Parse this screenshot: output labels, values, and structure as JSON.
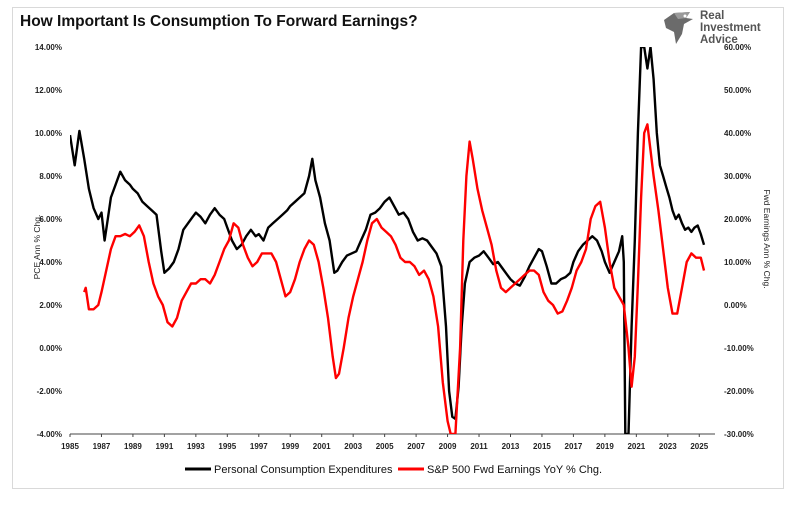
{
  "chart_data": {
    "type": "line",
    "title": "How Important Is Consumption To Forward Earnings?",
    "ylabel": "PCE Ann % Chg.",
    "y2label": "Fwd Earnings Ann % Chg.",
    "xlim": [
      1985,
      2026
    ],
    "ylim": [
      -0.04,
      0.14
    ],
    "y2lim": [
      -0.3,
      0.6
    ],
    "x_ticks": [
      "1985",
      "1987",
      "1989",
      "1991",
      "1993",
      "1995",
      "1997",
      "1999",
      "2001",
      "2003",
      "2005",
      "2007",
      "2009",
      "2011",
      "2013",
      "2015",
      "2017",
      "2019",
      "2021",
      "2023",
      "2025"
    ],
    "y_ticks": [
      "-4.00%",
      "-2.00%",
      "0.00%",
      "2.00%",
      "4.00%",
      "6.00%",
      "8.00%",
      "10.00%",
      "12.00%",
      "14.00%"
    ],
    "y2_ticks": [
      "-30.00%",
      "-20.00%",
      "-10.00%",
      "0.00%",
      "10.00%",
      "20.00%",
      "30.00%",
      "40.00%",
      "50.00%",
      "60.00%"
    ],
    "legend_position": "bottom",
    "grid": false,
    "series": [
      {
        "name": "Personal Consumption Expenditures",
        "color": "#000000",
        "axis": "left",
        "points": [
          [
            1985.0,
            0.099
          ],
          [
            1985.3,
            0.085
          ],
          [
            1985.6,
            0.101
          ],
          [
            1985.9,
            0.088
          ],
          [
            1986.2,
            0.074
          ],
          [
            1986.5,
            0.065
          ],
          [
            1986.8,
            0.06
          ],
          [
            1987.0,
            0.063
          ],
          [
            1987.2,
            0.05
          ],
          [
            1987.4,
            0.06
          ],
          [
            1987.6,
            0.07
          ],
          [
            1987.9,
            0.076
          ],
          [
            1988.2,
            0.082
          ],
          [
            1988.5,
            0.078
          ],
          [
            1988.8,
            0.076
          ],
          [
            1989.0,
            0.074
          ],
          [
            1989.3,
            0.072
          ],
          [
            1989.6,
            0.068
          ],
          [
            1989.9,
            0.066
          ],
          [
            1990.2,
            0.064
          ],
          [
            1990.5,
            0.062
          ],
          [
            1990.8,
            0.045
          ],
          [
            1991.0,
            0.035
          ],
          [
            1991.3,
            0.037
          ],
          [
            1991.6,
            0.04
          ],
          [
            1991.9,
            0.046
          ],
          [
            1992.2,
            0.055
          ],
          [
            1992.5,
            0.058
          ],
          [
            1992.8,
            0.061
          ],
          [
            1993.0,
            0.063
          ],
          [
            1993.3,
            0.061
          ],
          [
            1993.6,
            0.058
          ],
          [
            1993.9,
            0.062
          ],
          [
            1994.2,
            0.065
          ],
          [
            1994.5,
            0.062
          ],
          [
            1994.8,
            0.06
          ],
          [
            1995.0,
            0.056
          ],
          [
            1995.3,
            0.05
          ],
          [
            1995.6,
            0.046
          ],
          [
            1995.9,
            0.048
          ],
          [
            1996.2,
            0.052
          ],
          [
            1996.5,
            0.055
          ],
          [
            1996.8,
            0.052
          ],
          [
            1997.0,
            0.053
          ],
          [
            1997.3,
            0.05
          ],
          [
            1997.6,
            0.056
          ],
          [
            1997.9,
            0.058
          ],
          [
            1998.2,
            0.06
          ],
          [
            1998.5,
            0.062
          ],
          [
            1998.8,
            0.064
          ],
          [
            1999.0,
            0.066
          ],
          [
            1999.3,
            0.068
          ],
          [
            1999.6,
            0.07
          ],
          [
            1999.9,
            0.072
          ],
          [
            2000.2,
            0.08
          ],
          [
            2000.4,
            0.088
          ],
          [
            2000.6,
            0.078
          ],
          [
            2000.9,
            0.07
          ],
          [
            2001.2,
            0.058
          ],
          [
            2001.5,
            0.05
          ],
          [
            2001.8,
            0.035
          ],
          [
            2002.0,
            0.036
          ],
          [
            2002.3,
            0.04
          ],
          [
            2002.6,
            0.043
          ],
          [
            2002.9,
            0.044
          ],
          [
            2003.2,
            0.045
          ],
          [
            2003.5,
            0.05
          ],
          [
            2003.8,
            0.055
          ],
          [
            2004.1,
            0.062
          ],
          [
            2004.4,
            0.063
          ],
          [
            2004.7,
            0.065
          ],
          [
            2005.0,
            0.068
          ],
          [
            2005.3,
            0.07
          ],
          [
            2005.6,
            0.066
          ],
          [
            2005.9,
            0.062
          ],
          [
            2006.2,
            0.063
          ],
          [
            2006.5,
            0.06
          ],
          [
            2006.8,
            0.054
          ],
          [
            2007.1,
            0.05
          ],
          [
            2007.4,
            0.051
          ],
          [
            2007.7,
            0.05
          ],
          [
            2008.0,
            0.047
          ],
          [
            2008.3,
            0.044
          ],
          [
            2008.6,
            0.038
          ],
          [
            2008.9,
            0.01
          ],
          [
            2009.1,
            -0.02
          ],
          [
            2009.3,
            -0.032
          ],
          [
            2009.5,
            -0.033
          ],
          [
            2009.7,
            -0.018
          ],
          [
            2009.9,
            0.01
          ],
          [
            2010.1,
            0.03
          ],
          [
            2010.4,
            0.04
          ],
          [
            2010.7,
            0.042
          ],
          [
            2011.0,
            0.043
          ],
          [
            2011.3,
            0.045
          ],
          [
            2011.6,
            0.042
          ],
          [
            2011.9,
            0.039
          ],
          [
            2012.2,
            0.04
          ],
          [
            2012.5,
            0.037
          ],
          [
            2012.8,
            0.034
          ],
          [
            2013.0,
            0.032
          ],
          [
            2013.3,
            0.03
          ],
          [
            2013.6,
            0.029
          ],
          [
            2013.9,
            0.033
          ],
          [
            2014.2,
            0.038
          ],
          [
            2014.5,
            0.042
          ],
          [
            2014.8,
            0.046
          ],
          [
            2015.0,
            0.045
          ],
          [
            2015.3,
            0.038
          ],
          [
            2015.6,
            0.03
          ],
          [
            2015.9,
            0.03
          ],
          [
            2016.2,
            0.032
          ],
          [
            2016.5,
            0.033
          ],
          [
            2016.8,
            0.035
          ],
          [
            2017.0,
            0.04
          ],
          [
            2017.3,
            0.045
          ],
          [
            2017.6,
            0.048
          ],
          [
            2017.9,
            0.05
          ],
          [
            2018.2,
            0.052
          ],
          [
            2018.5,
            0.05
          ],
          [
            2018.8,
            0.045
          ],
          [
            2019.0,
            0.04
          ],
          [
            2019.3,
            0.035
          ],
          [
            2019.6,
            0.04
          ],
          [
            2019.9,
            0.045
          ],
          [
            2020.1,
            0.052
          ],
          [
            2020.2,
            0.04
          ],
          [
            2020.3,
            -0.04
          ],
          [
            2020.5,
            -0.04
          ],
          [
            2020.7,
            0.01
          ],
          [
            2020.9,
            0.05
          ],
          [
            2021.1,
            0.1
          ],
          [
            2021.3,
            0.14
          ],
          [
            2021.5,
            0.14
          ],
          [
            2021.7,
            0.13
          ],
          [
            2021.9,
            0.14
          ],
          [
            2022.1,
            0.125
          ],
          [
            2022.3,
            0.1
          ],
          [
            2022.5,
            0.085
          ],
          [
            2022.7,
            0.08
          ],
          [
            2022.9,
            0.075
          ],
          [
            2023.1,
            0.07
          ],
          [
            2023.3,
            0.064
          ],
          [
            2023.5,
            0.06
          ],
          [
            2023.7,
            0.062
          ],
          [
            2023.9,
            0.058
          ],
          [
            2024.1,
            0.055
          ],
          [
            2024.3,
            0.056
          ],
          [
            2024.5,
            0.054
          ],
          [
            2024.7,
            0.056
          ],
          [
            2024.9,
            0.057
          ],
          [
            2025.1,
            0.053
          ],
          [
            2025.3,
            0.048
          ]
        ]
      },
      {
        "name": "S&P 500 Fwd Earnings YoY % Chg.",
        "color": "#ff0000",
        "axis": "right",
        "points": [
          [
            1985.9,
            0.03
          ],
          [
            1986.0,
            0.04
          ],
          [
            1986.2,
            -0.01
          ],
          [
            1986.5,
            -0.01
          ],
          [
            1986.8,
            0.0
          ],
          [
            1987.0,
            0.03
          ],
          [
            1987.3,
            0.08
          ],
          [
            1987.6,
            0.13
          ],
          [
            1987.9,
            0.16
          ],
          [
            1988.2,
            0.16
          ],
          [
            1988.5,
            0.165
          ],
          [
            1988.8,
            0.16
          ],
          [
            1989.1,
            0.17
          ],
          [
            1989.4,
            0.185
          ],
          [
            1989.7,
            0.16
          ],
          [
            1990.0,
            0.1
          ],
          [
            1990.3,
            0.05
          ],
          [
            1990.6,
            0.02
          ],
          [
            1990.9,
            0.0
          ],
          [
            1991.2,
            -0.04
          ],
          [
            1991.5,
            -0.05
          ],
          [
            1991.8,
            -0.03
          ],
          [
            1992.1,
            0.01
          ],
          [
            1992.4,
            0.03
          ],
          [
            1992.7,
            0.05
          ],
          [
            1993.0,
            0.05
          ],
          [
            1993.3,
            0.06
          ],
          [
            1993.6,
            0.06
          ],
          [
            1993.9,
            0.05
          ],
          [
            1994.2,
            0.07
          ],
          [
            1994.5,
            0.1
          ],
          [
            1994.8,
            0.13
          ],
          [
            1995.1,
            0.15
          ],
          [
            1995.4,
            0.19
          ],
          [
            1995.7,
            0.18
          ],
          [
            1996.0,
            0.14
          ],
          [
            1996.3,
            0.11
          ],
          [
            1996.6,
            0.09
          ],
          [
            1996.9,
            0.1
          ],
          [
            1997.2,
            0.12
          ],
          [
            1997.5,
            0.12
          ],
          [
            1997.8,
            0.12
          ],
          [
            1998.1,
            0.1
          ],
          [
            1998.4,
            0.06
          ],
          [
            1998.7,
            0.02
          ],
          [
            1999.0,
            0.03
          ],
          [
            1999.3,
            0.06
          ],
          [
            1999.6,
            0.1
          ],
          [
            1999.9,
            0.13
          ],
          [
            2000.2,
            0.15
          ],
          [
            2000.5,
            0.14
          ],
          [
            2000.8,
            0.1
          ],
          [
            2001.1,
            0.04
          ],
          [
            2001.4,
            -0.03
          ],
          [
            2001.7,
            -0.12
          ],
          [
            2001.9,
            -0.17
          ],
          [
            2002.1,
            -0.16
          ],
          [
            2002.4,
            -0.1
          ],
          [
            2002.7,
            -0.03
          ],
          [
            2003.0,
            0.02
          ],
          [
            2003.3,
            0.06
          ],
          [
            2003.6,
            0.1
          ],
          [
            2003.9,
            0.15
          ],
          [
            2004.2,
            0.19
          ],
          [
            2004.5,
            0.2
          ],
          [
            2004.8,
            0.18
          ],
          [
            2005.1,
            0.17
          ],
          [
            2005.4,
            0.16
          ],
          [
            2005.7,
            0.14
          ],
          [
            2006.0,
            0.11
          ],
          [
            2006.3,
            0.1
          ],
          [
            2006.6,
            0.1
          ],
          [
            2006.9,
            0.09
          ],
          [
            2007.2,
            0.07
          ],
          [
            2007.5,
            0.08
          ],
          [
            2007.8,
            0.06
          ],
          [
            2008.1,
            0.02
          ],
          [
            2008.4,
            -0.05
          ],
          [
            2008.7,
            -0.18
          ],
          [
            2009.0,
            -0.27
          ],
          [
            2009.2,
            -0.3
          ],
          [
            2009.5,
            -0.3
          ],
          [
            2009.8,
            -0.1
          ],
          [
            2010.0,
            0.15
          ],
          [
            2010.2,
            0.3
          ],
          [
            2010.4,
            0.38
          ],
          [
            2010.6,
            0.34
          ],
          [
            2010.9,
            0.27
          ],
          [
            2011.2,
            0.22
          ],
          [
            2011.5,
            0.18
          ],
          [
            2011.8,
            0.14
          ],
          [
            2012.1,
            0.08
          ],
          [
            2012.4,
            0.04
          ],
          [
            2012.7,
            0.03
          ],
          [
            2013.0,
            0.04
          ],
          [
            2013.3,
            0.05
          ],
          [
            2013.6,
            0.06
          ],
          [
            2013.9,
            0.07
          ],
          [
            2014.2,
            0.08
          ],
          [
            2014.5,
            0.08
          ],
          [
            2014.8,
            0.07
          ],
          [
            2015.1,
            0.03
          ],
          [
            2015.4,
            0.01
          ],
          [
            2015.7,
            0.0
          ],
          [
            2016.0,
            -0.02
          ],
          [
            2016.3,
            -0.015
          ],
          [
            2016.6,
            0.01
          ],
          [
            2016.9,
            0.04
          ],
          [
            2017.2,
            0.08
          ],
          [
            2017.5,
            0.1
          ],
          [
            2017.8,
            0.13
          ],
          [
            2018.1,
            0.2
          ],
          [
            2018.4,
            0.23
          ],
          [
            2018.7,
            0.24
          ],
          [
            2019.0,
            0.18
          ],
          [
            2019.3,
            0.1
          ],
          [
            2019.6,
            0.04
          ],
          [
            2019.9,
            0.02
          ],
          [
            2020.2,
            0.0
          ],
          [
            2020.5,
            -0.1
          ],
          [
            2020.7,
            -0.19
          ],
          [
            2020.9,
            -0.12
          ],
          [
            2021.1,
            0.05
          ],
          [
            2021.3,
            0.25
          ],
          [
            2021.5,
            0.4
          ],
          [
            2021.7,
            0.42
          ],
          [
            2021.9,
            0.36
          ],
          [
            2022.1,
            0.3
          ],
          [
            2022.4,
            0.22
          ],
          [
            2022.7,
            0.13
          ],
          [
            2023.0,
            0.04
          ],
          [
            2023.3,
            -0.02
          ],
          [
            2023.6,
            -0.02
          ],
          [
            2023.9,
            0.04
          ],
          [
            2024.2,
            0.1
          ],
          [
            2024.5,
            0.12
          ],
          [
            2024.8,
            0.11
          ],
          [
            2025.1,
            0.11
          ],
          [
            2025.3,
            0.08
          ]
        ]
      }
    ]
  }
}
